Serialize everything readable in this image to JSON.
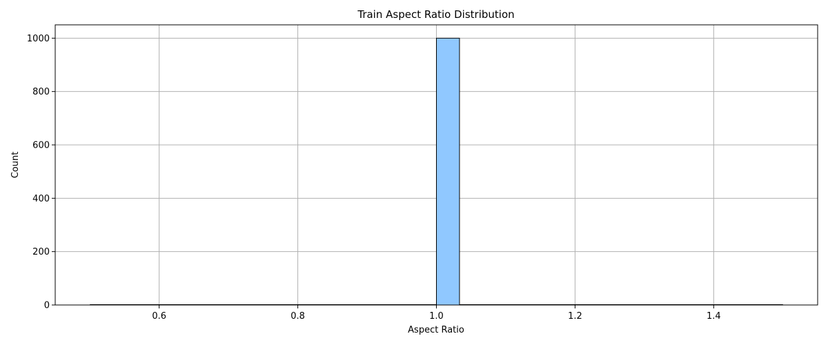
{
  "chart_data": {
    "type": "bar",
    "title": "Train Aspect Ratio Distribution",
    "xlabel": "Aspect Ratio",
    "ylabel": "Count",
    "xlim": [
      0.45,
      1.55
    ],
    "ylim": [
      0,
      1050
    ],
    "xticks": [
      0.6,
      0.8,
      1.0,
      1.2,
      1.4
    ],
    "xtick_labels": [
      "0.6",
      "0.8",
      "1.0",
      "1.2",
      "1.4"
    ],
    "yticks": [
      0,
      200,
      400,
      600,
      800,
      1000
    ],
    "ytick_labels": [
      "0",
      "200",
      "400",
      "600",
      "800",
      "1000"
    ],
    "grid": true,
    "bar_color": "#90c8ff",
    "edge_color": "#000000",
    "bins": [
      {
        "x0": 1.0,
        "x1": 1.0333,
        "count": 1000
      }
    ],
    "hist_range": [
      0.5,
      1.5
    ]
  }
}
